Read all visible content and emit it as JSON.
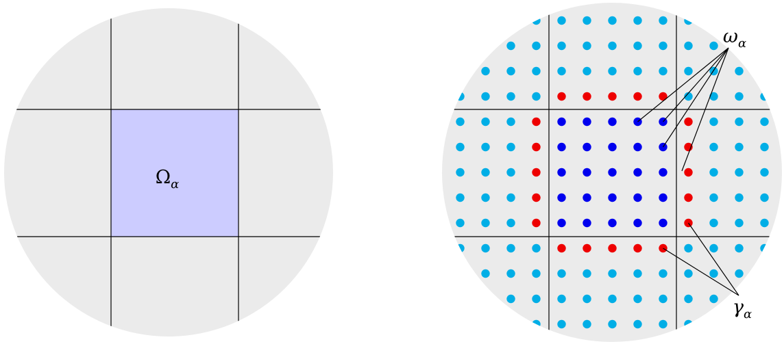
{
  "left_panel": {
    "region_label": "Ω",
    "region_subscript": "α"
  },
  "right_panel": {
    "omega_label": "ω",
    "omega_subscript": "α",
    "gamma_label": "γ",
    "gamma_subscript": "α"
  },
  "colors": {
    "disk_fill": "#ebebeb",
    "subdomain_fill": "#ccccff",
    "grid_line": "#000000",
    "exterior_node": "#00aee6",
    "interior_node": "#0000ee",
    "boundary_node": "#ee0000"
  }
}
